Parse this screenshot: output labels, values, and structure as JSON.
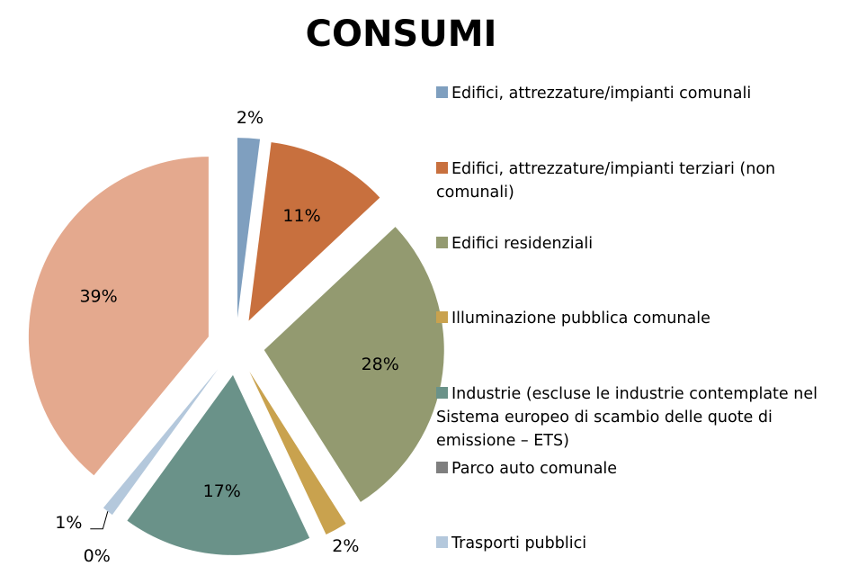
{
  "chart_data": {
    "type": "pie",
    "title": "CONSUMI",
    "categories": [
      "Edifici, attrezzature/impianti comunali",
      "Edifici, attrezzature/impianti terziari (non comunali)",
      "Edifici residenziali",
      "Illuminazione pubblica comunale",
      "Industrie (escluse le industrie contemplate nel Sistema europeo di scambio delle quote di emissione – ETS)",
      "Parco auto comunale",
      "Trasporti pubblici",
      null
    ],
    "values": [
      2,
      11,
      28,
      2,
      17,
      0,
      1,
      39
    ],
    "value_labels": [
      "2%",
      "11%",
      "28%",
      "2%",
      "17%",
      "0%",
      "1%",
      "39%"
    ],
    "colors": [
      "#7f9fbf",
      "#c8703e",
      "#939a70",
      "#c9a24e",
      "#6a9289",
      "#7f7f7f",
      "#b4c8dc",
      "#e4a98e"
    ],
    "legend": "right"
  }
}
